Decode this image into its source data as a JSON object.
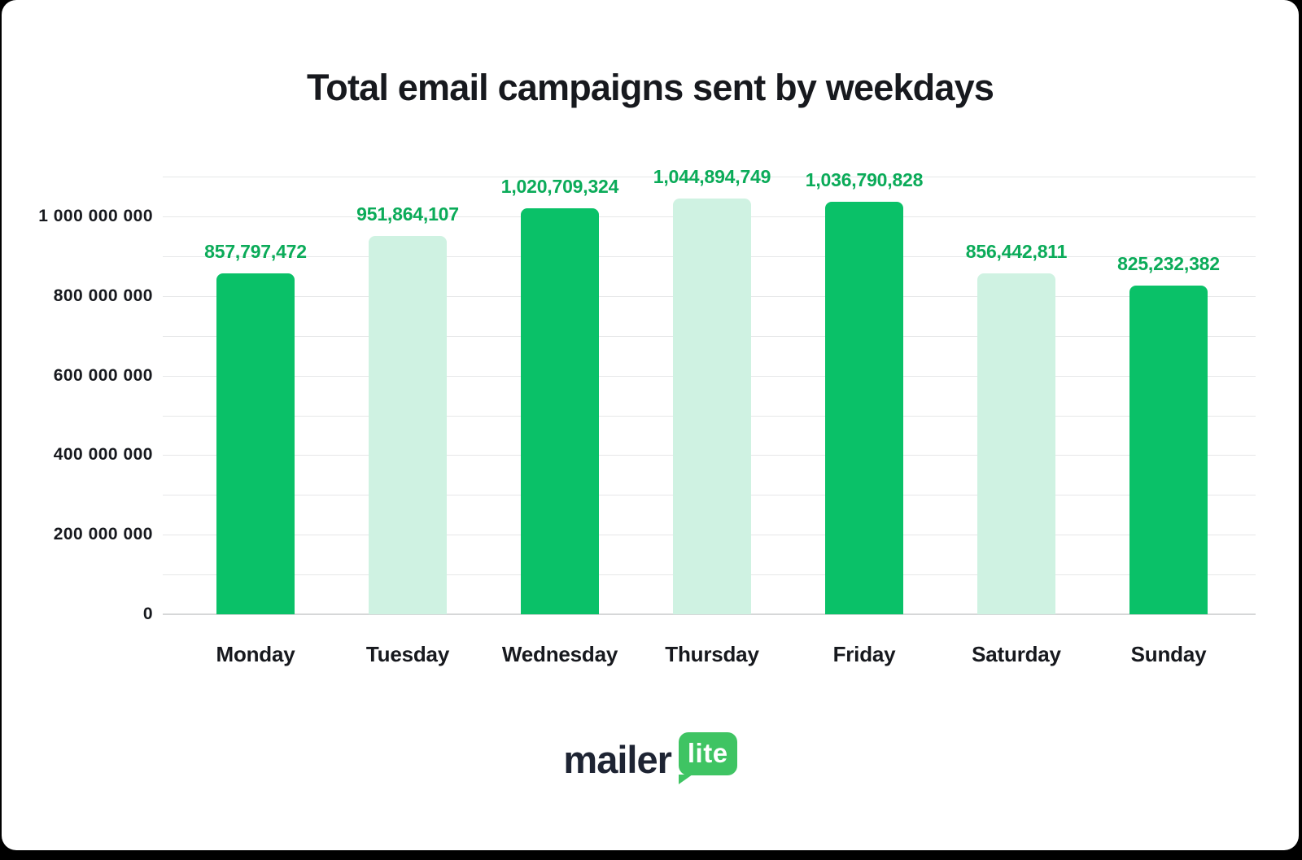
{
  "page": {
    "background_color": "#000000",
    "card_color": "#ffffff"
  },
  "chart_data": {
    "type": "bar",
    "title": "Total email campaigns sent by weekdays",
    "categories": [
      "Monday",
      "Tuesday",
      "Wednesday",
      "Thursday",
      "Friday",
      "Saturday",
      "Sunday"
    ],
    "values": [
      857797472,
      951864107,
      1020709324,
      1044894749,
      1036790828,
      856442811,
      825232382
    ],
    "value_labels": [
      "857,797,472",
      "951,864,107",
      "1,020,709,324",
      "1,044,894,749",
      "1,036,790,828",
      "856,442,811",
      "825,232,382"
    ],
    "bar_variants": [
      "dark",
      "light",
      "dark",
      "light",
      "dark",
      "light",
      "dark"
    ],
    "xlabel": "",
    "ylabel": "",
    "ylim": [
      0,
      1100000000
    ],
    "y_major_ticks": [
      {
        "value": 0,
        "label": "0"
      },
      {
        "value": 200000000,
        "label": "200 000 000"
      },
      {
        "value": 400000000,
        "label": "400 000 000"
      },
      {
        "value": 600000000,
        "label": "600 000 000"
      },
      {
        "value": 800000000,
        "label": "800 000 000"
      },
      {
        "value": 1000000000,
        "label": "1 000 000 000"
      }
    ],
    "y_minor_step": 100000000,
    "grid": "horizontal-on",
    "legend": "none",
    "colors": {
      "bar_dark": "#0ac168",
      "bar_light": "#cff2e2",
      "value_label": "#0bab59",
      "axis_text": "#17191e",
      "gridline": "#e6e7e8",
      "baseline": "#d6d7d8"
    }
  },
  "logo": {
    "mailer": "mailer",
    "lite": "lite",
    "bubble_color": "#3fc463",
    "text_color": "#1e2433"
  }
}
